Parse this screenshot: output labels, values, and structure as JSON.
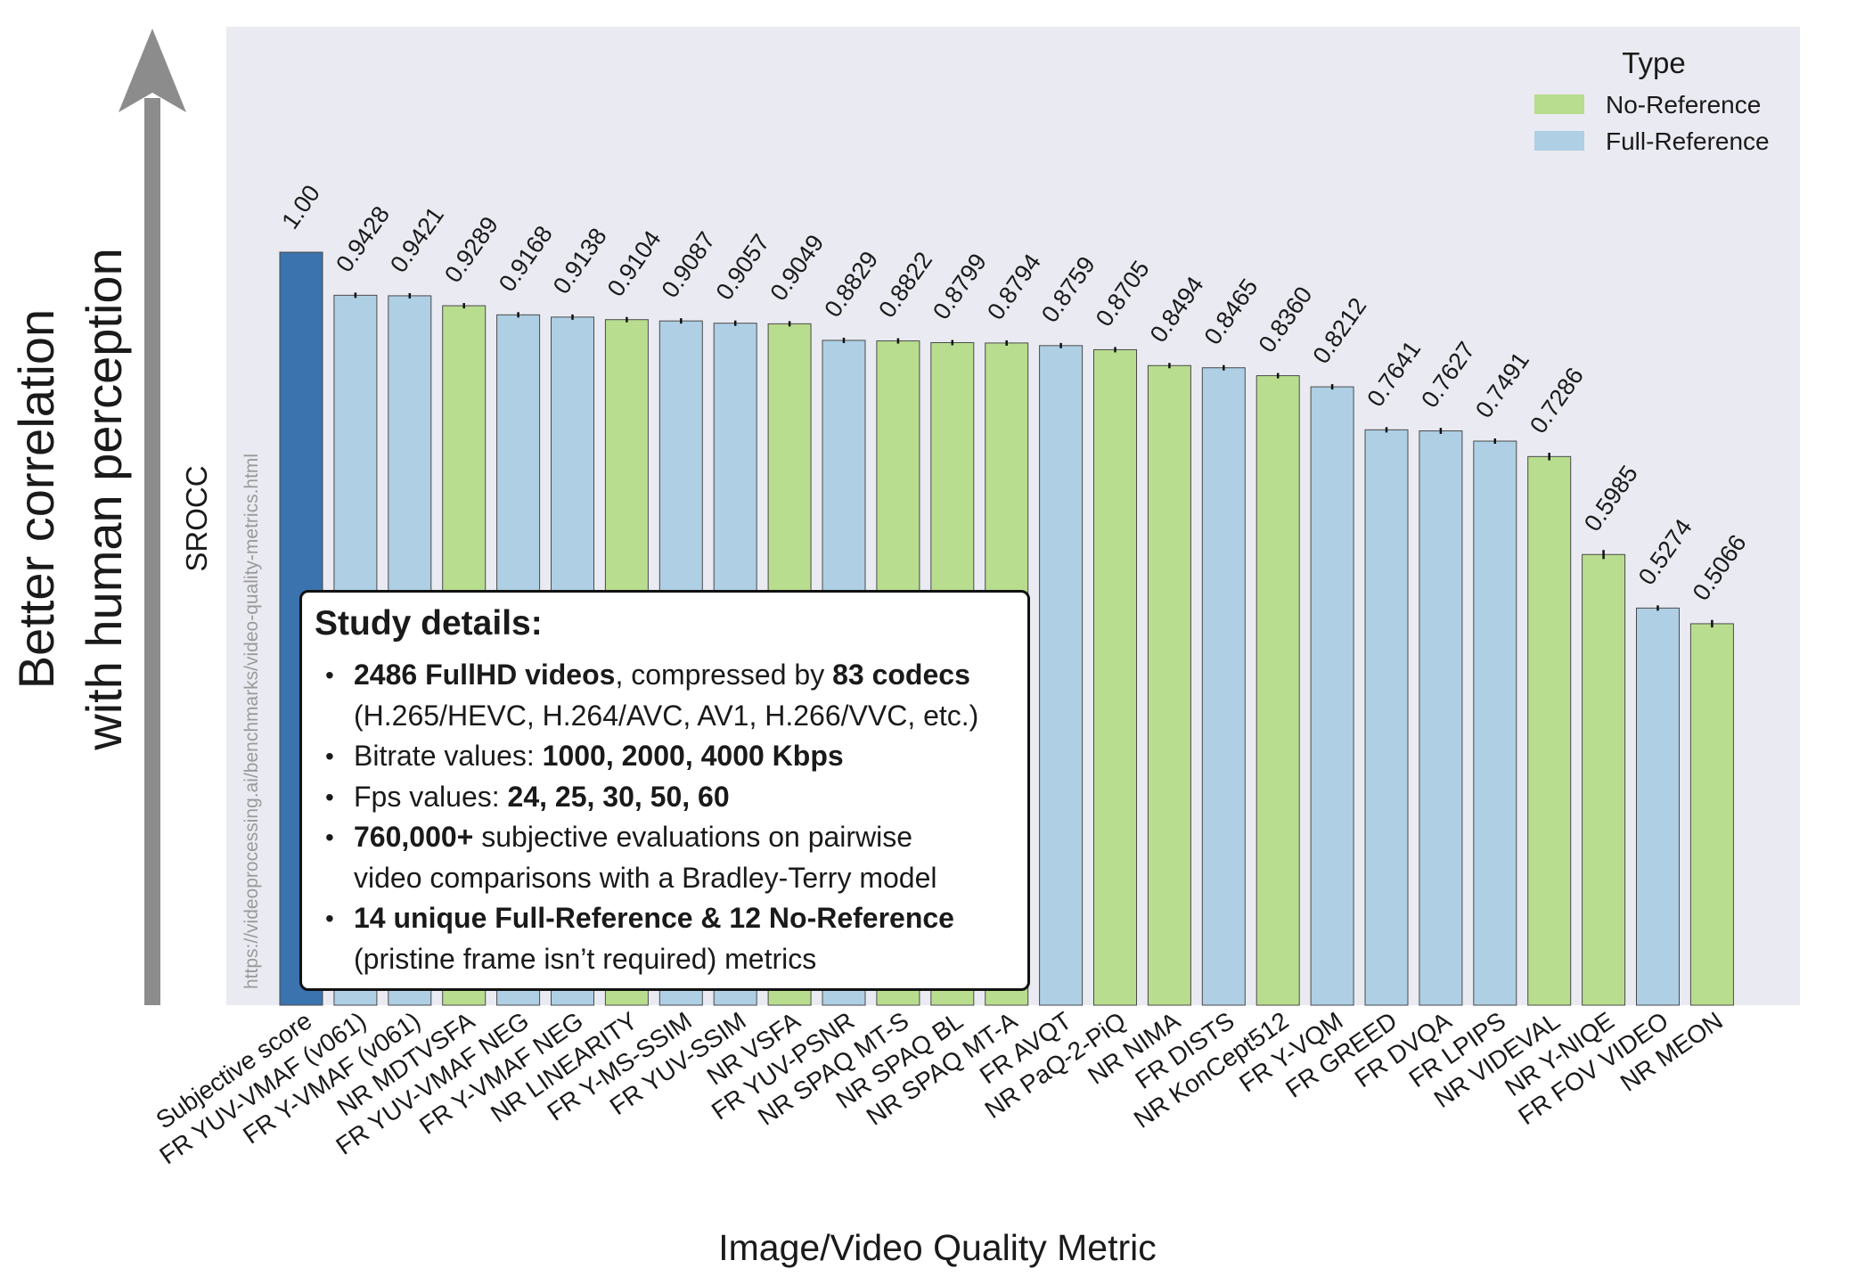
{
  "chart_data": {
    "type": "bar",
    "xlabel": "Image/Video Quality Metric",
    "ylabel": "SROCC",
    "side_label": [
      "Better correlation",
      "with human perception"
    ],
    "watermark": "https://videoprocessing.ai/benchmarks/video-quality-metrics.html",
    "ylim": [
      0,
      1.0
    ],
    "grid": false,
    "legend": {
      "title": "Type",
      "placement": "top-right",
      "entries": [
        {
          "name": "No-Reference",
          "color": "#b9dd8e"
        },
        {
          "name": "Full-Reference",
          "color": "#aecfe4"
        }
      ]
    },
    "colors": {
      "subjective": "#3a73ae",
      "nr": "#b9dd8e",
      "fr": "#aecfe4",
      "plot_bg": "#eaeaf2"
    },
    "bars": [
      {
        "category": "Subjective score",
        "value": 1.0,
        "label": "1.00",
        "kind": "subjective",
        "err": 0
      },
      {
        "category": "FR YUV-VMAF (v061)",
        "value": 0.9428,
        "label": "0.9428",
        "kind": "fr",
        "err": 0.001
      },
      {
        "category": "FR Y-VMAF (v061)",
        "value": 0.9421,
        "label": "0.9421",
        "kind": "fr",
        "err": 0.001
      },
      {
        "category": "NR MDTVSFA",
        "value": 0.9289,
        "label": "0.9289",
        "kind": "nr",
        "err": 0.001
      },
      {
        "category": "FR YUV-VMAF NEG",
        "value": 0.9168,
        "label": "0.9168",
        "kind": "fr",
        "err": 0.001
      },
      {
        "category": "FR Y-VMAF NEG",
        "value": 0.9138,
        "label": "0.9138",
        "kind": "fr",
        "err": 0.001
      },
      {
        "category": "NR LINEARITY",
        "value": 0.9104,
        "label": "0.9104",
        "kind": "nr",
        "err": 0.001
      },
      {
        "category": "FR Y-MS-SSIM",
        "value": 0.9087,
        "label": "0.9087",
        "kind": "fr",
        "err": 0.001
      },
      {
        "category": "FR YUV-SSIM",
        "value": 0.9057,
        "label": "0.9057",
        "kind": "fr",
        "err": 0.001
      },
      {
        "category": "NR VSFA",
        "value": 0.9049,
        "label": "0.9049",
        "kind": "nr",
        "err": 0.001
      },
      {
        "category": "FR YUV-PSNR",
        "value": 0.8829,
        "label": "0.8829",
        "kind": "fr",
        "err": 0.001
      },
      {
        "category": "NR SPAQ MT-S",
        "value": 0.8822,
        "label": "0.8822",
        "kind": "nr",
        "err": 0.001
      },
      {
        "category": "NR SPAQ BL",
        "value": 0.8799,
        "label": "0.8799",
        "kind": "nr",
        "err": 0.001
      },
      {
        "category": "NR SPAQ MT-A",
        "value": 0.8794,
        "label": "0.8794",
        "kind": "nr",
        "err": 0.001
      },
      {
        "category": "FR AVQT",
        "value": 0.8759,
        "label": "0.8759",
        "kind": "fr",
        "err": 0.001
      },
      {
        "category": "NR PaQ-2-PiQ",
        "value": 0.8705,
        "label": "0.8705",
        "kind": "nr",
        "err": 0.001
      },
      {
        "category": "NR NIMA",
        "value": 0.8494,
        "label": "0.8494",
        "kind": "nr",
        "err": 0.002
      },
      {
        "category": "FR DISTS",
        "value": 0.8465,
        "label": "0.8465",
        "kind": "fr",
        "err": 0.002
      },
      {
        "category": "NR KonCept512",
        "value": 0.836,
        "label": "0.8360",
        "kind": "nr",
        "err": 0.002
      },
      {
        "category": "FR Y-VQM",
        "value": 0.8212,
        "label": "0.8212",
        "kind": "fr",
        "err": 0.003
      },
      {
        "category": "FR GREED",
        "value": 0.7641,
        "label": "0.7641",
        "kind": "fr",
        "err": 0.003
      },
      {
        "category": "FR DVQA",
        "value": 0.7627,
        "label": "0.7627",
        "kind": "fr",
        "err": 0.004
      },
      {
        "category": "FR LPIPS",
        "value": 0.7491,
        "label": "0.7491",
        "kind": "fr",
        "err": 0.003
      },
      {
        "category": "NR VIDEVAL",
        "value": 0.7286,
        "label": "0.7286",
        "kind": "nr",
        "err": 0.005
      },
      {
        "category": "NR Y-NIQE",
        "value": 0.5985,
        "label": "0.5985",
        "kind": "nr",
        "err": 0.006
      },
      {
        "category": "FR FOV VIDEO",
        "value": 0.5274,
        "label": "0.5274",
        "kind": "fr",
        "err": 0.003
      },
      {
        "category": "NR MEON",
        "value": 0.5066,
        "label": "0.5066",
        "kind": "nr",
        "err": 0.005
      }
    ]
  },
  "study_details": {
    "title": "Study details:",
    "items": [
      {
        "lines": [
          [
            {
              "t": "2486 FullHD videos",
              "b": true
            },
            {
              "t": ", compressed by ",
              "b": false
            },
            {
              "t": "83 codecs",
              "b": true
            }
          ],
          [
            {
              "t": "(H.265/HEVC, H.264/AVC, AV1, H.266/VVC, etc.)",
              "b": false
            }
          ]
        ]
      },
      {
        "lines": [
          [
            {
              "t": "Bitrate values: ",
              "b": false
            },
            {
              "t": "1000, 2000, 4000 Kbps",
              "b": true
            }
          ]
        ]
      },
      {
        "lines": [
          [
            {
              "t": "Fps values: ",
              "b": false
            },
            {
              "t": "24, 25, 30, 50, 60",
              "b": true
            }
          ]
        ]
      },
      {
        "lines": [
          [
            {
              "t": "760,000+",
              "b": true
            },
            {
              "t": " subjective evaluations on pairwise",
              "b": false
            }
          ],
          [
            {
              "t": "video comparisons with a Bradley-Terry model",
              "b": false
            }
          ]
        ]
      },
      {
        "lines": [
          [
            {
              "t": "14 unique Full-Reference & 12 No-Reference",
              "b": true
            }
          ],
          [
            {
              "t": "(pristine frame isn’t required) metrics",
              "b": false
            }
          ]
        ]
      }
    ]
  }
}
